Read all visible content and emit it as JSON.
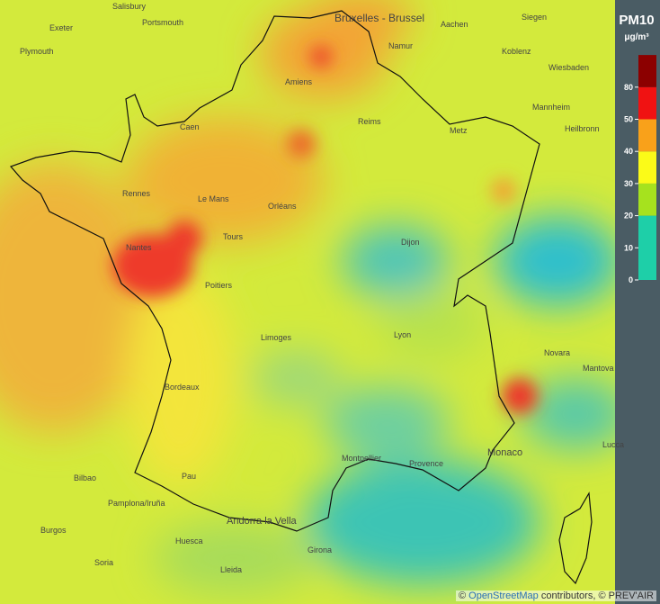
{
  "legend": {
    "title": "PM10",
    "unit": "μg/m³",
    "ticks": [
      0,
      10,
      20,
      30,
      40,
      50,
      80
    ],
    "bands": [
      {
        "from": 0,
        "color": "#1ecfa8"
      },
      {
        "from": 20,
        "color": "#a6e21e"
      },
      {
        "from": 30,
        "color": "#fbfb18"
      },
      {
        "from": 40,
        "color": "#f9a11a"
      },
      {
        "from": 50,
        "color": "#f01212"
      },
      {
        "from": 80,
        "color": "#8c0000"
      }
    ]
  },
  "places": [
    "Salisbury",
    "Portsmouth",
    "Exeter",
    "Plymouth",
    "Bruxelles - Brussel",
    "Namur",
    "Aachen",
    "Siegen",
    "Koblenz",
    "Wiesbaden",
    "Mannheim",
    "Heilbronn",
    "Amiens",
    "Caen",
    "Reims",
    "Metz",
    "Rennes",
    "Le Mans",
    "Orléans",
    "Tours",
    "Nantes",
    "Dijon",
    "Poitiers",
    "Limoges",
    "Lyon",
    "Bordeaux",
    "Novara",
    "Mantova",
    "Lucca",
    "Monaco",
    "Montpellier",
    "Provence",
    "Pau",
    "Bilbao",
    "Pamplona/Iruña",
    "Burgos",
    "Huesca",
    "Andorra la Vella",
    "Girona",
    "Lleida",
    "Soria"
  ],
  "attribution": {
    "prefix": "©",
    "link": "OpenStreetMap",
    "suffix": "contributors, © PREV'AIR"
  }
}
